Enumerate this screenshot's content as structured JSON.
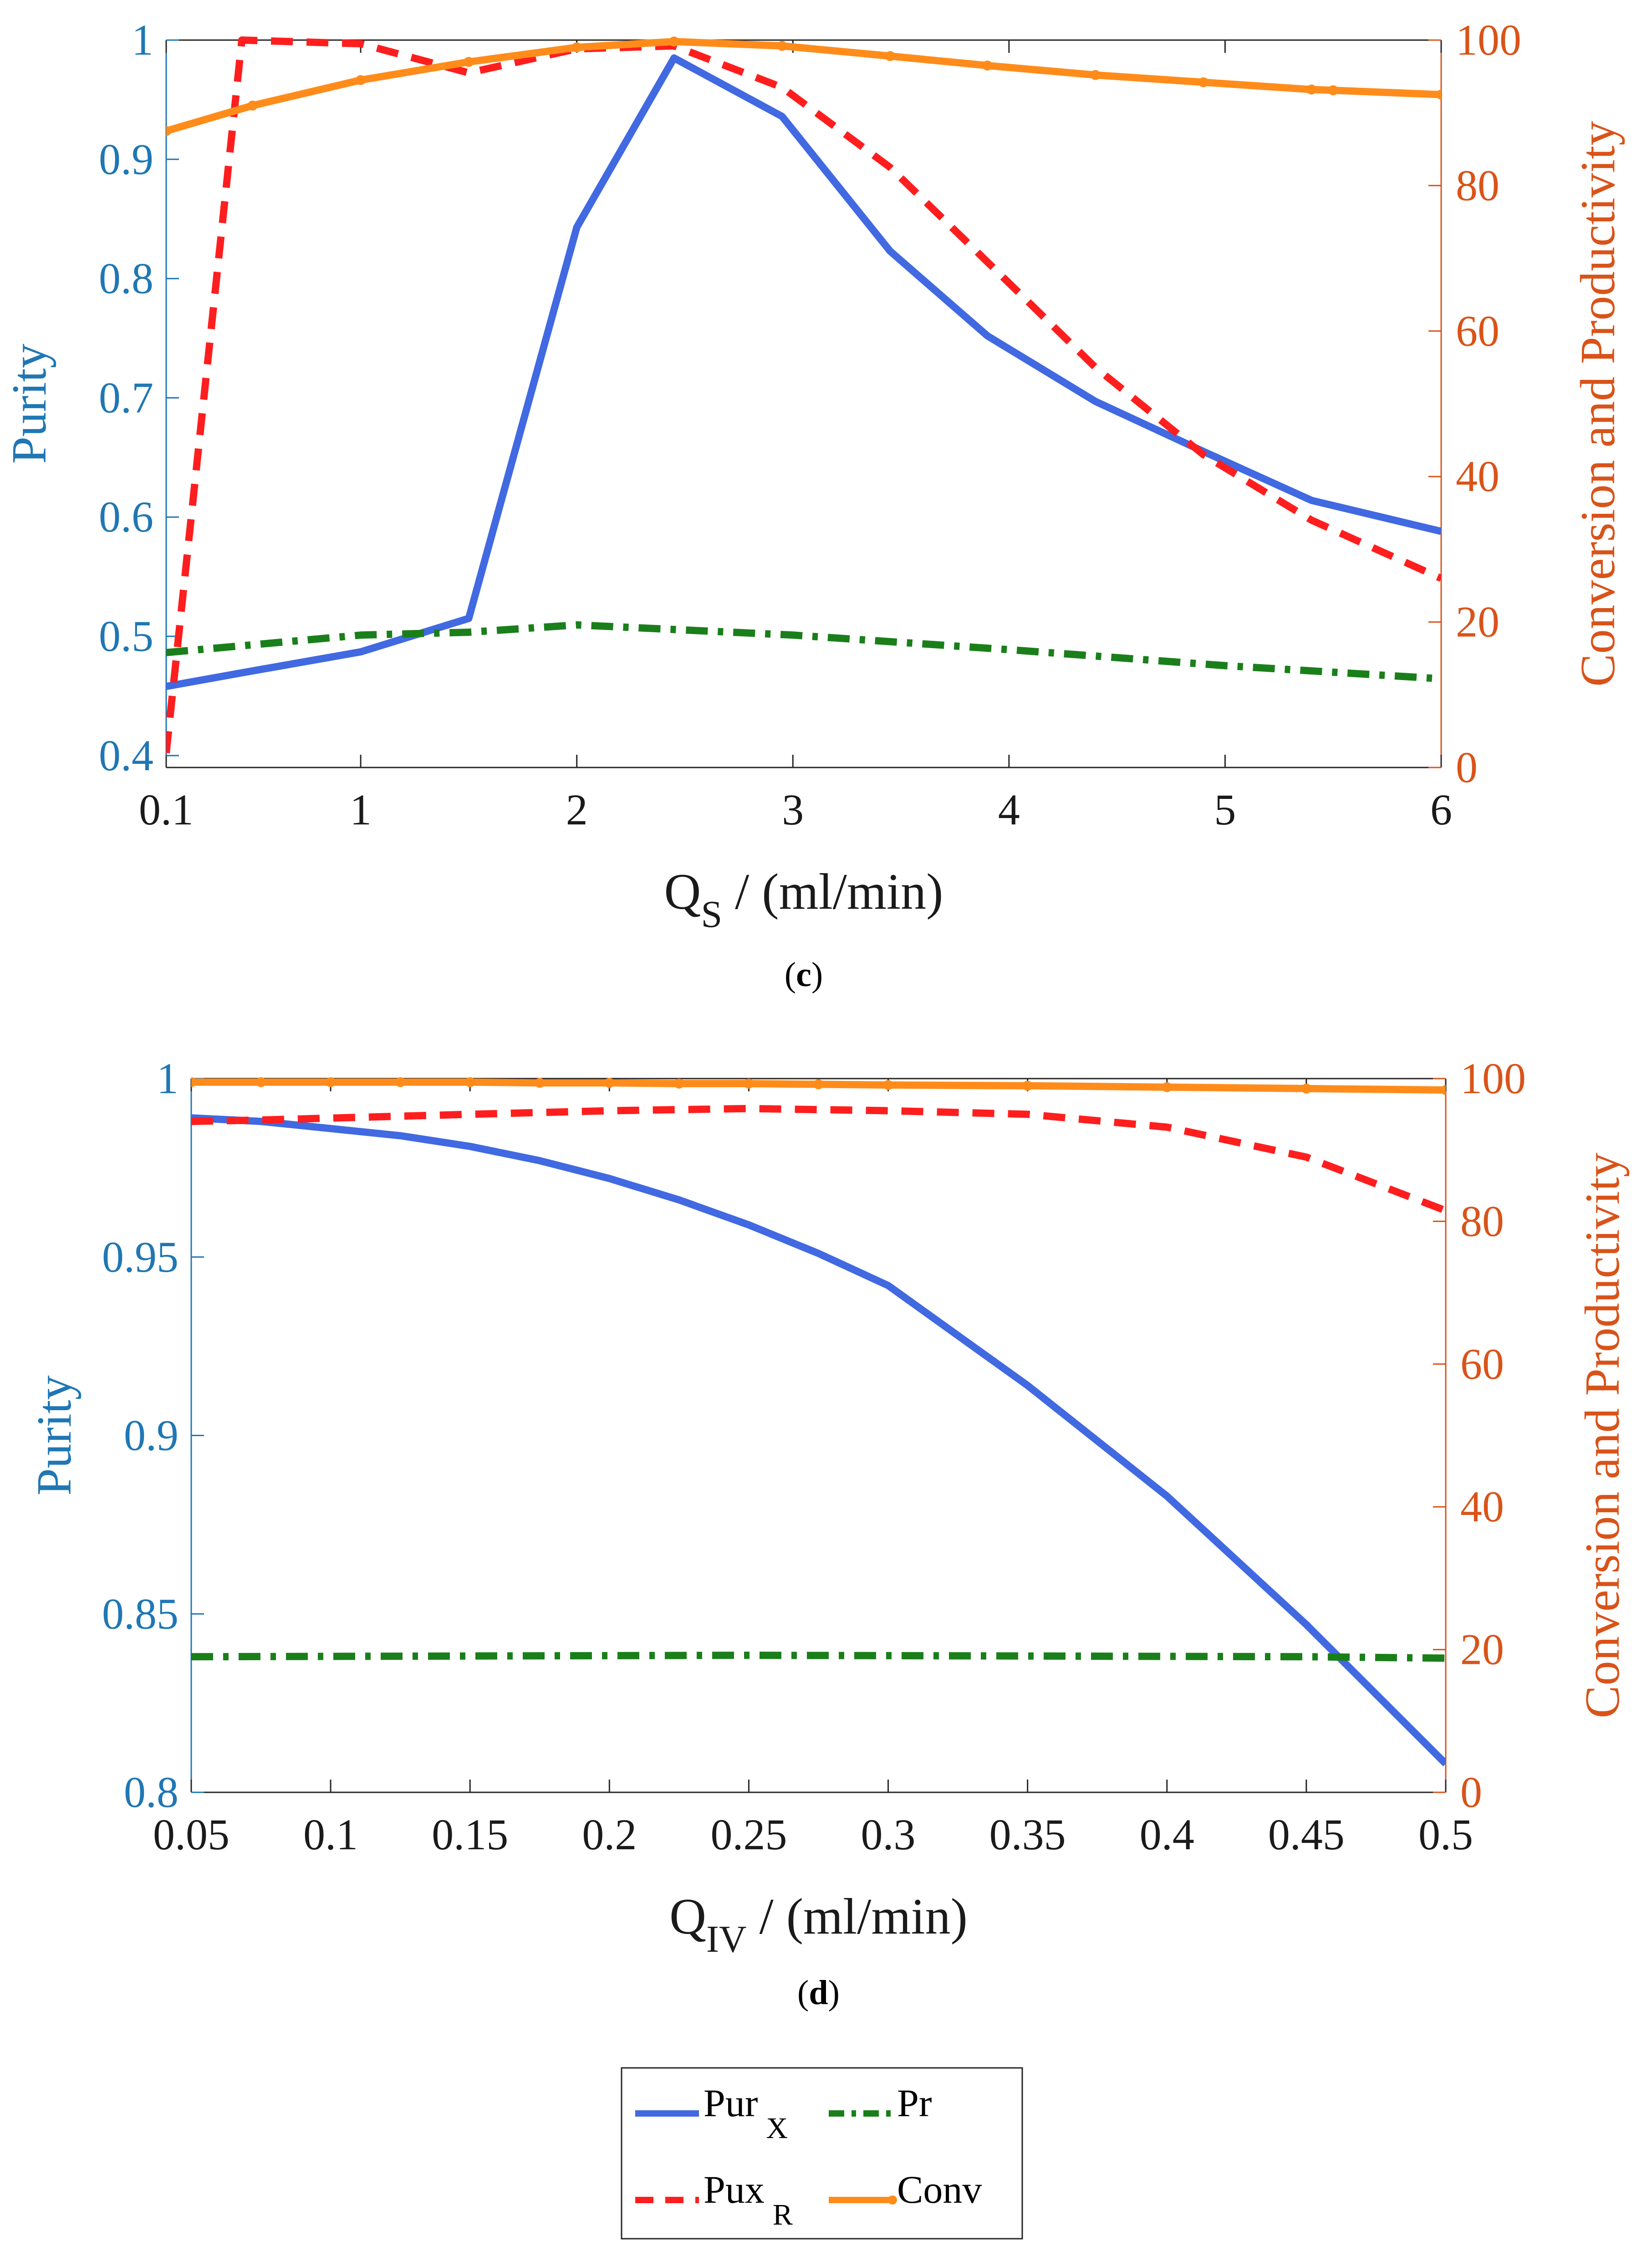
{
  "chart_data": [
    {
      "panel_label": "c",
      "type": "line",
      "xlabel": {
        "main": "Q",
        "sub": "S",
        "rest": " / (ml/min)"
      },
      "ylabel": "Purity",
      "y2label": "Conversion and Productivity",
      "x_ticks": [
        0.1,
        1,
        2,
        3,
        4,
        5,
        6
      ],
      "x_tick_labels": [
        "0.1",
        "1",
        "2",
        "3",
        "4",
        "5",
        "6"
      ],
      "xlim": [
        0.1,
        6
      ],
      "y_ticks": [
        0.4,
        0.5,
        0.6,
        0.7,
        0.8,
        0.9,
        1
      ],
      "y_tick_labels": [
        "0.4",
        "0.5",
        "0.6",
        "0.7",
        "0.8",
        "0.9",
        "1"
      ],
      "ylim": [
        0.39,
        1
      ],
      "y2_ticks": [
        0,
        20,
        40,
        60,
        80,
        100
      ],
      "y2_tick_labels": [
        "0",
        "20",
        "40",
        "60",
        "80",
        "100"
      ],
      "y2lim": [
        0,
        100
      ],
      "series": [
        {
          "key": "pur_x",
          "axis": "left",
          "color": "#4169e1",
          "style": "solid",
          "x": [
            0.1,
            0.5,
            1,
            1.5,
            2,
            2.45,
            2.95,
            3.45,
            3.9,
            4.4,
            4.9,
            5.4,
            6
          ],
          "values": [
            0.458,
            0.471,
            0.487,
            0.515,
            0.843,
            0.985,
            0.936,
            0.823,
            0.752,
            0.697,
            0.655,
            0.614,
            0.588
          ]
        },
        {
          "key": "pux_r",
          "axis": "right",
          "color": "#ff1e1e",
          "style": "dashed",
          "x": [
            0.1,
            0.45,
            1,
            1.5,
            2,
            2.45,
            2.95,
            3.45,
            3.9,
            4.4,
            4.9,
            5.4,
            6
          ],
          "values": [
            2,
            100,
            99.5,
            95.5,
            98.8,
            99.2,
            93.5,
            82.5,
            69.5,
            55,
            43,
            34,
            26
          ]
        },
        {
          "key": "pr",
          "axis": "right",
          "color": "#1a7f1a",
          "style": "dashdot",
          "x": [
            0.1,
            1,
            1.5,
            2,
            3,
            4,
            5,
            6
          ],
          "values": [
            15.8,
            18.2,
            18.6,
            19.6,
            18.2,
            16.2,
            14,
            12.2
          ]
        },
        {
          "key": "conv",
          "axis": "right",
          "color": "#ff8c1a",
          "style": "solid-marker",
          "x": [
            0.1,
            0.5,
            1,
            1.5,
            2,
            2.45,
            2.95,
            3.45,
            3.9,
            4.4,
            4.9,
            5.4,
            5.5,
            6
          ],
          "values": [
            87.5,
            91,
            94.5,
            97,
            99,
            99.8,
            99.2,
            97.8,
            96.5,
            95.2,
            94.2,
            93.2,
            93.1,
            92.5
          ]
        }
      ]
    },
    {
      "panel_label": "d",
      "type": "line",
      "xlabel": {
        "main": "Q",
        "sub": "IV",
        "rest": " / (ml/min)"
      },
      "ylabel": "Purity",
      "y2label": "Conversion and Productivity",
      "x_ticks": [
        0.05,
        0.1,
        0.15,
        0.2,
        0.25,
        0.3,
        0.35,
        0.4,
        0.45,
        0.5
      ],
      "x_tick_labels": [
        "0.05",
        "0.1",
        "0.15",
        "0.2",
        "0.25",
        "0.3",
        "0.35",
        "0.4",
        "0.45",
        "0.5"
      ],
      "xlim": [
        0.05,
        0.5
      ],
      "y_ticks": [
        0.8,
        0.85,
        0.9,
        0.95,
        1
      ],
      "y_tick_labels": [
        "0.8",
        "0.85",
        "0.9",
        "0.95",
        "1"
      ],
      "ylim": [
        0.8,
        1
      ],
      "y2_ticks": [
        0,
        20,
        40,
        60,
        80,
        100
      ],
      "y2_tick_labels": [
        "0",
        "20",
        "40",
        "60",
        "80",
        "100"
      ],
      "y2lim": [
        0,
        100
      ],
      "series": [
        {
          "key": "pur_x",
          "axis": "left",
          "color": "#4169e1",
          "style": "solid",
          "x": [
            0.05,
            0.075,
            0.125,
            0.15,
            0.175,
            0.2,
            0.225,
            0.25,
            0.275,
            0.3,
            0.35,
            0.4,
            0.45,
            0.5
          ],
          "values": [
            0.989,
            0.988,
            0.984,
            0.981,
            0.977,
            0.972,
            0.966,
            0.959,
            0.951,
            0.942,
            0.914,
            0.883,
            0.847,
            0.808
          ]
        },
        {
          "key": "pux_r",
          "axis": "right",
          "color": "#ff1e1e",
          "style": "dashed",
          "x": [
            0.05,
            0.075,
            0.15,
            0.2,
            0.25,
            0.3,
            0.35,
            0.4,
            0.45,
            0.5
          ],
          "values": [
            94,
            94.2,
            95,
            95.5,
            95.8,
            95.5,
            95,
            93.2,
            89,
            81.5
          ]
        },
        {
          "key": "pr",
          "axis": "right",
          "color": "#1a7f1a",
          "style": "dashdot",
          "x": [
            0.05,
            0.15,
            0.25,
            0.35,
            0.45,
            0.5
          ],
          "values": [
            19,
            19.1,
            19.2,
            19.1,
            19,
            18.8
          ]
        },
        {
          "key": "conv",
          "axis": "right",
          "color": "#ff8c1a",
          "style": "solid-marker",
          "x": [
            0.05,
            0.075,
            0.1,
            0.125,
            0.15,
            0.175,
            0.2,
            0.225,
            0.25,
            0.275,
            0.3,
            0.35,
            0.4,
            0.45,
            0.5
          ],
          "values": [
            99.5,
            99.5,
            99.5,
            99.5,
            99.5,
            99.4,
            99.4,
            99.3,
            99.3,
            99.2,
            99.1,
            99,
            98.8,
            98.6,
            98.4
          ]
        }
      ]
    }
  ],
  "legend": {
    "placement": "bottom-center",
    "entries": [
      {
        "key": "pur_x",
        "label": "Pur",
        "sub": "X",
        "color": "#4169e1",
        "style": "solid"
      },
      {
        "key": "pr",
        "label": "Pr",
        "sub": "",
        "color": "#1a7f1a",
        "style": "dashdot"
      },
      {
        "key": "pux_r",
        "label": "Pux",
        "sub": "R",
        "color": "#ff1e1e",
        "style": "dashed"
      },
      {
        "key": "conv",
        "label": "Conv",
        "sub": "",
        "color": "#ff8c1a",
        "style": "solid-marker"
      }
    ]
  },
  "colors": {
    "left_axis": "#1f77b4",
    "right_axis": "#d95319",
    "frame": "#262626"
  }
}
